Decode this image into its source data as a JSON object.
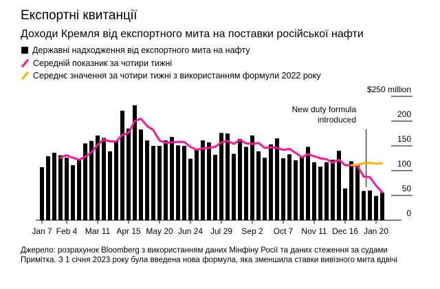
{
  "title": "Експортні квитанції",
  "subtitle": "Доходи Кремля від експортного мита на поставки російської нафти",
  "legend": [
    {
      "label": "Державні надходження від експортного мита на нафту",
      "color": "#000000"
    },
    {
      "label": "Середній показник за чотири тижні",
      "color": "#ff1493"
    },
    {
      "label": "Середнє значення за чотири тижні з використанням формули 2022 року",
      "color": "#f7b500"
    }
  ],
  "footer": {
    "source": "Джерело: розрахунок Bloomberg з використанням даних Мінфіну Росії та даних стеження за судами",
    "note": "Примітка. З 1 січня 2023 року була введена нова формула, яка зменшила ставки вивізного мита вдвічі"
  },
  "chart_data": {
    "type": "bar",
    "title": "Експортні квитанції",
    "ylabel": "$ million",
    "ylim": [
      0,
      250
    ],
    "y_ticks": [
      "0",
      "50",
      "100",
      "150",
      "200",
      "$250 million"
    ],
    "y_tick_values": [
      0,
      50,
      100,
      150,
      200,
      250
    ],
    "x_ticks": [
      "Jan 7",
      "Feb 4",
      "Mar 11",
      "Apr 15",
      "May 20",
      "Jun 24",
      "Jul 29",
      "Sep 2",
      "Oct 7",
      "Nov 11",
      "Dec 16",
      "Jan 20"
    ],
    "x_tick_index": [
      0,
      4,
      9,
      14,
      19,
      24,
      29,
      34,
      39,
      44,
      49,
      54
    ],
    "annotation": {
      "text_line1": "New duty formula",
      "text_line2": "introduced",
      "week_index": 52.4
    },
    "series": [
      {
        "name": "Державні надходження від експортного мита на нафту",
        "type": "bar",
        "start": 0,
        "values": [
          107,
          129,
          136,
          131,
          126,
          111,
          121,
          155,
          160,
          171,
          166,
          139,
          160,
          221,
          185,
          232,
          183,
          161,
          150,
          150,
          161,
          168,
          151,
          150,
          124,
          143,
          161,
          157,
          132,
          176,
          175,
          134,
          164,
          148,
          171,
          139,
          126,
          153,
          165,
          125,
          133,
          121,
          128,
          148,
          117,
          108,
          117,
          122,
          140,
          64,
          119,
          111,
          59,
          60,
          49,
          56
        ]
      },
      {
        "name": "Середній показник за чотири тижні",
        "type": "line",
        "start": 3,
        "values": [
          126,
          131,
          126,
          122,
          128,
          137,
          152,
          163,
          159,
          159,
          172,
          176,
          200,
          205,
          190,
          182,
          161,
          156,
          157,
          158,
          158,
          148,
          142,
          145,
          146,
          148,
          157,
          160,
          154,
          162,
          155,
          154,
          156,
          146,
          147,
          146,
          142,
          144,
          136,
          127,
          133,
          129,
          125,
          123,
          116,
          122,
          111,
          111,
          109,
          88,
          87,
          70,
          56
        ]
      },
      {
        "name": "Середнє значення за чотири тижні з використанням формули 2022 року",
        "type": "line",
        "start": 50,
        "values": [
          111,
          112,
          115,
          116,
          114,
          115
        ]
      }
    ]
  }
}
